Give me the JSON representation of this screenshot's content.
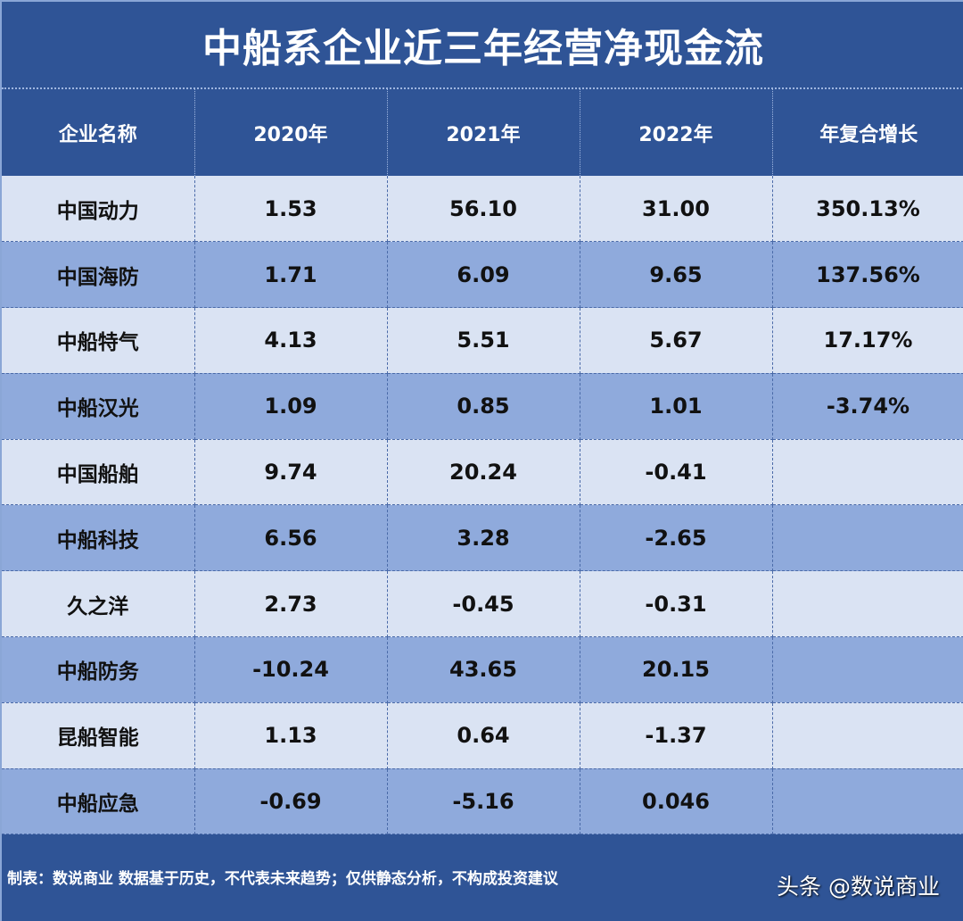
{
  "title": "中船系企业近三年经营净现金流",
  "table": {
    "headers": [
      "企业名称",
      "2020年",
      "2021年",
      "2022年",
      "年复合增长"
    ],
    "rows": [
      {
        "name": "中国动力",
        "y2020": "1.53",
        "y2021": "56.10",
        "y2022": "31.00",
        "cagr": "350.13%"
      },
      {
        "name": "中国海防",
        "y2020": "1.71",
        "y2021": "6.09",
        "y2022": "9.65",
        "cagr": "137.56%"
      },
      {
        "name": "中船特气",
        "y2020": "4.13",
        "y2021": "5.51",
        "y2022": "5.67",
        "cagr": "17.17%"
      },
      {
        "name": "中船汉光",
        "y2020": "1.09",
        "y2021": "0.85",
        "y2022": "1.01",
        "cagr": "-3.74%"
      },
      {
        "name": "中国船舶",
        "y2020": "9.74",
        "y2021": "20.24",
        "y2022": "-0.41",
        "cagr": ""
      },
      {
        "name": "中船科技",
        "y2020": "6.56",
        "y2021": "3.28",
        "y2022": "-2.65",
        "cagr": ""
      },
      {
        "name": "久之洋",
        "y2020": "2.73",
        "y2021": "-0.45",
        "y2022": "-0.31",
        "cagr": ""
      },
      {
        "name": "中船防务",
        "y2020": "-10.24",
        "y2021": "43.65",
        "y2022": "20.15",
        "cagr": ""
      },
      {
        "name": "昆船智能",
        "y2020": "1.13",
        "y2021": "0.64",
        "y2022": "-1.37",
        "cagr": ""
      },
      {
        "name": "中船应急",
        "y2020": "-0.69",
        "y2021": "-5.16",
        "y2022": "0.046",
        "cagr": ""
      }
    ]
  },
  "footer": {
    "note": "制表：数说商业 数据基于历史，不代表未来趋势；仅供静态分析，不构成投资建议",
    "brand": "头条 @数说商业"
  },
  "colors": {
    "header_bg": "#2f5496",
    "row_light": "#dae3f3",
    "row_dark": "#8faadc",
    "text_dark": "#111111",
    "text_light": "#ffffff"
  },
  "chart_data": {
    "type": "table",
    "title": "中船系企业近三年经营净现金流",
    "columns": [
      "企业名称",
      "2020年",
      "2021年",
      "2022年",
      "年复合增长"
    ],
    "rows": [
      [
        "中国动力",
        1.53,
        56.1,
        31.0,
        "350.13%"
      ],
      [
        "中国海防",
        1.71,
        6.09,
        9.65,
        "137.56%"
      ],
      [
        "中船特气",
        4.13,
        5.51,
        5.67,
        "17.17%"
      ],
      [
        "中船汉光",
        1.09,
        0.85,
        1.01,
        "-3.74%"
      ],
      [
        "中国船舶",
        9.74,
        20.24,
        -0.41,
        ""
      ],
      [
        "中船科技",
        6.56,
        3.28,
        -2.65,
        ""
      ],
      [
        "久之洋",
        2.73,
        -0.45,
        -0.31,
        ""
      ],
      [
        "中船防务",
        -10.24,
        43.65,
        20.15,
        ""
      ],
      [
        "昆船智能",
        1.13,
        0.64,
        -1.37,
        ""
      ],
      [
        "中船应急",
        -0.69,
        -5.16,
        0.046,
        ""
      ]
    ]
  }
}
